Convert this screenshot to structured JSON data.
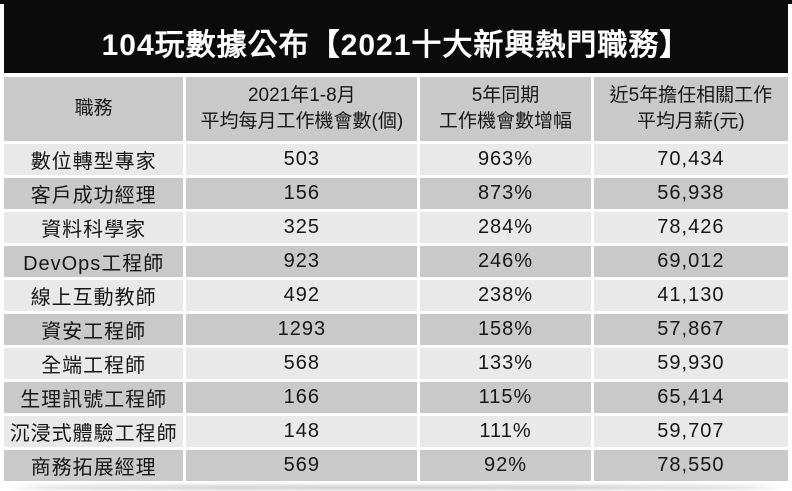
{
  "title": "104玩數據公布【2021十大新興熱門職務】",
  "colors": {
    "title_bg": "#0b0b0b",
    "title_text": "#ffffff",
    "header_bg": "#c9c9c9",
    "row_light": "#e9e9e9",
    "row_dark": "#c9c9c9",
    "separator": "#ffffff",
    "text": "#161616"
  },
  "chart_data": {
    "type": "table",
    "title": "104玩數據公布【2021十大新興熱門職務】",
    "columns": [
      "職務",
      "2021年1-8月\n平均每月工作機會數(個)",
      "5年同期\n工作機會數增幅",
      "近5年擔任相關工作\n平均月薪(元)"
    ],
    "rows": [
      [
        "數位轉型專家",
        "503",
        "963%",
        "70,434"
      ],
      [
        "客戶成功經理",
        "156",
        "873%",
        "56,938"
      ],
      [
        "資料科學家",
        "325",
        "284%",
        "78,426"
      ],
      [
        "DevOps工程師",
        "923",
        "246%",
        "69,012"
      ],
      [
        "線上互動教師",
        "492",
        "238%",
        "41,130"
      ],
      [
        "資安工程師",
        "1293",
        "158%",
        "57,867"
      ],
      [
        "全端工程師",
        "568",
        "133%",
        "59,930"
      ],
      [
        "生理訊號工程師",
        "166",
        "115%",
        "65,414"
      ],
      [
        "沉浸式體驗工程師",
        "148",
        "111%",
        "59,707"
      ],
      [
        "商務拓展經理",
        "569",
        "92%",
        "78,550"
      ]
    ]
  }
}
